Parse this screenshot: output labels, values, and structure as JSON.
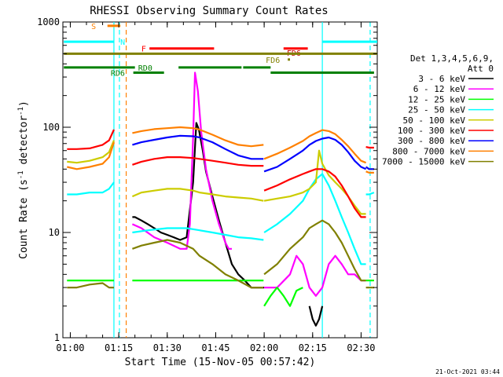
{
  "chart_data": {
    "type": "line",
    "title": "RHESSI Observing Summary Count Rates",
    "xlabel": "Start Time (15-Nov-05 00:57:42)",
    "ylabel_main": "Count Rate (s",
    "ylabel_sup1": "-1",
    "ylabel_mid": " detector",
    "ylabel_sup2": "-1",
    "ylabel_end": ")",
    "y_scale": "log",
    "ylim": [
      1,
      1000
    ],
    "xlim_minutes": [
      57.7,
      155
    ],
    "x_ticks": [
      {
        "m": 60,
        "label": "01:00"
      },
      {
        "m": 75,
        "label": "01:15"
      },
      {
        "m": 90,
        "label": "01:30"
      },
      {
        "m": 105,
        "label": "01:45"
      },
      {
        "m": 120,
        "label": "02:00"
      },
      {
        "m": 135,
        "label": "02:15"
      },
      {
        "m": 150,
        "label": "02:30"
      }
    ],
    "y_ticks": [
      {
        "v": 1,
        "label": "1"
      },
      {
        "v": 10,
        "label": "10"
      },
      {
        "v": 100,
        "label": "100"
      },
      {
        "v": 1000,
        "label": "1000"
      }
    ],
    "legend": {
      "title1": "Det 1,3,4,5,6,9,",
      "title2": "Att 0",
      "placement": "right"
    },
    "series": [
      {
        "name": "3 - 6 keV",
        "color": "#000000",
        "segments": [
          {
            "x": [
              79.2,
              80,
              82,
              84,
              86,
              88,
              90,
              92,
              94,
              96,
              98,
              99,
              99.8,
              101,
              102,
              104,
              106,
              108,
              110,
              112,
              114,
              116,
              118,
              120
            ],
            "y": [
              14,
              14,
              13,
              12,
              11,
              10,
              9.5,
              9,
              8.5,
              9,
              30,
              110,
              95,
              60,
              38,
              22,
              13,
              8,
              5,
              4,
              3.5,
              3,
              3,
              3
            ]
          },
          {
            "x": [
              134,
              135,
              136,
              137,
              138
            ],
            "y": [
              2,
              1.5,
              1.3,
              1.5,
              2
            ]
          }
        ]
      },
      {
        "name": "6 - 12 keV",
        "color": "#ff00ff",
        "segments": [
          {
            "x": [
              79.2,
              82,
              86,
              90,
              94,
              96,
              97,
              98,
              98.6,
              99.5,
              100.5,
              102,
              104,
              106,
              108,
              109,
              110
            ],
            "y": [
              12,
              11,
              9,
              8,
              7,
              7,
              12,
              80,
              330,
              220,
              90,
              40,
              20,
              12,
              8,
              7,
              7
            ]
          },
          {
            "x": [
              120,
              124,
              128,
              130,
              132,
              134,
              136,
              138,
              140,
              142,
              144,
              146,
              148,
              150,
              151.5
            ],
            "y": [
              3,
              3,
              4,
              6,
              5,
              3,
              2.5,
              3,
              5,
              6,
              5,
              4,
              4,
              3.5,
              3.5
            ]
          }
        ]
      },
      {
        "name": "12 - 25 keV",
        "color": "#00ff00",
        "segments": [
          {
            "x": [
              59,
              62,
              66,
              70,
              72,
              73.5
            ],
            "y": [
              3.5,
              3.5,
              3.5,
              3.5,
              3.5,
              3.5
            ]
          },
          {
            "x": [
              79.2,
              84,
              88,
              92,
              96,
              100,
              104,
              108,
              112,
              116,
              119.8
            ],
            "y": [
              3.5,
              3.5,
              3.5,
              3.5,
              3.5,
              3.5,
              3.5,
              3.5,
              3.5,
              3.5,
              3.5
            ]
          },
          {
            "x": [
              120,
              122,
              124,
              126,
              128,
              130,
              132
            ],
            "y": [
              2,
              2.5,
              3,
              2.5,
              2,
              2.8,
              3
            ]
          },
          {
            "x": [
              151.5,
              152.5,
              154
            ],
            "y": [
              3.5,
              3.5,
              3.5
            ]
          }
        ]
      },
      {
        "name": "25 - 50 keV",
        "color": "#00ffff",
        "segments": [
          {
            "x": [
              59,
              62,
              66,
              70,
              72,
              73.5
            ],
            "y": [
              23,
              23,
              24,
              24,
              26,
              30
            ]
          },
          {
            "x": [
              79.2,
              84,
              90,
              96,
              100,
              104,
              108,
              112,
              116,
              119.8
            ],
            "y": [
              10,
              10.5,
              11,
              11,
              10.5,
              10,
              9.5,
              9,
              8.8,
              8.5
            ]
          },
          {
            "x": [
              120,
              124,
              128,
              132,
              134,
              136,
              138,
              140,
              142,
              144,
              146,
              148,
              150,
              151.5
            ],
            "y": [
              10,
              12,
              15,
              20,
              26,
              32,
              36,
              28,
              20,
              14,
              10,
              7,
              5,
              5
            ]
          },
          {
            "x": [
              151.5,
              152.5,
              154
            ],
            "y": [
              23,
              23,
              24
            ]
          }
        ]
      },
      {
        "name": "50 - 100 keV",
        "color": "#cccc00",
        "segments": [
          {
            "x": [
              59,
              62,
              66,
              70,
              72,
              73.5
            ],
            "y": [
              47,
              46,
              48,
              52,
              58,
              75
            ]
          },
          {
            "x": [
              79.2,
              82,
              86,
              90,
              94,
              98,
              100,
              104,
              108,
              112,
              116,
              119.8
            ],
            "y": [
              22,
              24,
              25,
              26,
              26,
              25,
              24,
              23,
              22,
              21.5,
              21,
              20
            ]
          },
          {
            "x": [
              120,
              124,
              128,
              132,
              134,
              136,
              137,
              138,
              140,
              142,
              144,
              146,
              148,
              150,
              151.5
            ],
            "y": [
              20,
              21,
              22,
              24,
              26,
              30,
              60,
              45,
              35,
              30,
              26,
              22,
              18,
              15,
              15
            ]
          },
          {
            "x": [
              151.5,
              152.5,
              154
            ],
            "y": [
              42,
              40,
              40
            ]
          }
        ]
      },
      {
        "name": "100 - 300 keV",
        "color": "#ff0000",
        "segments": [
          {
            "x": [
              59,
              62,
              66,
              70,
              72,
              73.5
            ],
            "y": [
              62,
              62,
              63,
              68,
              75,
              95
            ]
          },
          {
            "x": [
              79.2,
              82,
              86,
              90,
              94,
              98,
              100,
              104,
              108,
              112,
              116,
              119.8
            ],
            "y": [
              44,
              47,
              50,
              52,
              52,
              51,
              50,
              48,
              46,
              44,
              43,
              43
            ]
          },
          {
            "x": [
              120,
              124,
              128,
              132,
              134,
              136,
              138,
              140,
              142,
              144,
              146,
              148,
              150,
              151.5
            ],
            "y": [
              25,
              28,
              32,
              36,
              38,
              40,
              40,
              38,
              34,
              28,
              22,
              17,
              14,
              14
            ]
          },
          {
            "x": [
              151.5,
              152.5,
              154
            ],
            "y": [
              65,
              64,
              64
            ]
          }
        ]
      },
      {
        "name": "300 - 800 keV",
        "color": "#0000ff",
        "segments": [
          {
            "x": [
              79.2,
              82,
              86,
              90,
              94,
              98,
              100,
              104,
              108,
              112,
              116,
              119.8
            ],
            "y": [
              68,
              72,
              76,
              80,
              83,
              82,
              80,
              72,
              62,
              54,
              50,
              50
            ]
          },
          {
            "x": [
              120,
              124,
              128,
              132,
              134,
              136,
              138,
              140,
              142,
              144,
              146,
              148,
              150,
              151.5
            ],
            "y": [
              38,
              42,
              50,
              60,
              68,
              74,
              78,
              80,
              76,
              68,
              58,
              48,
              42,
              40
            ]
          },
          {
            "x": [
              151.5,
              152.5,
              154
            ],
            "y": [
              42,
              40,
              40
            ]
          }
        ]
      },
      {
        "name": "800 - 7000 keV",
        "color": "#ff8000",
        "segments": [
          {
            "x": [
              59,
              62,
              66,
              70,
              72,
              73.5
            ],
            "y": [
              42,
              40,
              42,
              45,
              52,
              72
            ]
          },
          {
            "x": [
              79.2,
              82,
              86,
              90,
              94,
              98,
              100,
              104,
              108,
              112,
              116,
              119.8
            ],
            "y": [
              88,
              92,
              96,
              98,
              100,
              98,
              95,
              85,
              75,
              68,
              66,
              68
            ]
          },
          {
            "x": [
              120,
              124,
              128,
              132,
              134,
              136,
              138,
              140,
              142,
              144,
              146,
              148,
              150,
              151.5
            ],
            "y": [
              50,
              56,
              64,
              74,
              82,
              88,
              94,
              92,
              86,
              76,
              66,
              56,
              48,
              46
            ]
          },
          {
            "x": [
              151.5,
              152.5,
              154
            ],
            "y": [
              38,
              37,
              37
            ]
          }
        ]
      },
      {
        "name": "7000 - 15000 keV",
        "color": "#808000",
        "segments": [
          {
            "x": [
              59,
              62,
              66,
              70,
              72,
              73.5
            ],
            "y": [
              3,
              3,
              3.2,
              3.3,
              3,
              3
            ]
          },
          {
            "x": [
              79.2,
              82,
              86,
              90,
              94,
              98,
              100,
              104,
              108,
              112,
              116,
              119.8
            ],
            "y": [
              7,
              7.5,
              8,
              8.5,
              8,
              7,
              6,
              5,
              4,
              3.5,
              3,
              3
            ]
          },
          {
            "x": [
              120,
              124,
              128,
              132,
              134,
              136,
              138,
              140,
              142,
              144,
              146,
              148,
              150,
              151.5
            ],
            "y": [
              4,
              5,
              7,
              9,
              11,
              12,
              13,
              12,
              10,
              8,
              6,
              4.5,
              3.5,
              3.5
            ]
          },
          {
            "x": [
              151.5,
              152.5,
              154
            ],
            "y": [
              3,
              3,
              3
            ]
          }
        ]
      }
    ],
    "flags": [
      {
        "label": "S",
        "color": "#ff8000",
        "y": 920,
        "label_m": 66.5,
        "segments": [
          [
            71.5,
            75.5
          ]
        ]
      },
      {
        "label": "N",
        "color": "#00ffff",
        "y": 650,
        "label_m": 75.5,
        "segments": [
          [
            58,
            73.5
          ],
          [
            138,
            155
          ]
        ]
      },
      {
        "label": "F",
        "color": "#ff0000",
        "y": 560,
        "label_m": 82,
        "segments": [
          [
            84.5,
            104.5
          ],
          [
            126,
            133.5
          ]
        ]
      },
      {
        "label": "FD6",
        "color": "#cc0000",
        "y": 510,
        "label_m": 127,
        "segments": []
      },
      {
        "label": "",
        "color": "#808000",
        "y": 500,
        "label_m": 0,
        "segments": [
          [
            58,
            155
          ]
        ]
      },
      {
        "label": "FD6",
        "color": "#808000",
        "y": 440,
        "label_m": 120.5,
        "segments": [
          [
            127.3,
            128
          ]
        ]
      },
      {
        "label": "RD0",
        "color": "#008000",
        "y": 370,
        "label_m": 81,
        "segments": [
          [
            58,
            80
          ],
          [
            93.5,
            113
          ],
          [
            113.5,
            122
          ]
        ]
      },
      {
        "label": "RD6",
        "color": "#008000",
        "y": 330,
        "label_m": 72.5,
        "segments": [
          [
            79.5,
            89
          ],
          [
            122,
            154
          ]
        ]
      }
    ],
    "vlines": [
      {
        "m": 73.5,
        "color": "#00ffff",
        "style": "solid"
      },
      {
        "m": 75.2,
        "color": "#00ffff",
        "style": "dashed"
      },
      {
        "m": 77.3,
        "color": "#ff8000",
        "style": "dashed"
      },
      {
        "m": 138,
        "color": "#00ffff",
        "style": "solid"
      },
      {
        "m": 152.8,
        "color": "#00ffff",
        "style": "dashed"
      }
    ]
  },
  "footer": {
    "timestamp": "21-Oct-2021 03:44"
  }
}
